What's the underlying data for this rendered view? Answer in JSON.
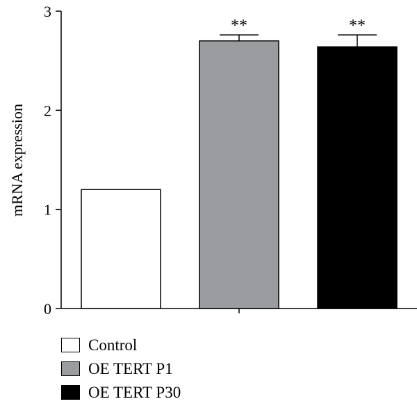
{
  "chart_data": {
    "type": "bar",
    "categories": [
      "Control",
      "OE TERT P1",
      "OE TERT P30"
    ],
    "values": [
      1.2,
      2.7,
      2.64
    ],
    "errors": [
      0,
      0.06,
      0.12
    ],
    "significance": [
      "",
      "**",
      "**"
    ],
    "colors": [
      "#ffffff",
      "#9a9ca0",
      "#000000"
    ],
    "ylabel": "mRNA expression",
    "xlabel": "",
    "ylim": [
      0,
      3
    ],
    "yticks": [
      0,
      1,
      2,
      3
    ],
    "grid": false,
    "legend": {
      "placement": "bottom-left",
      "entries": [
        "Control",
        "OE TERT P1",
        "OE TERT P30"
      ]
    }
  }
}
